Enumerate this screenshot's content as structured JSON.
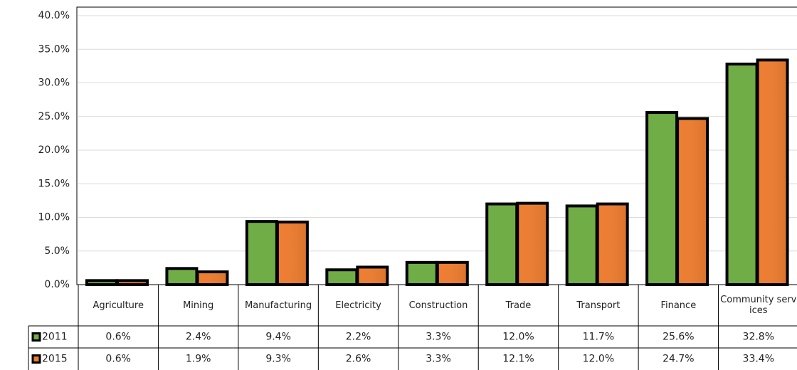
{
  "chart_data": {
    "type": "bar",
    "categories": [
      "Agriculture",
      "Mining",
      "Manufacturing",
      "Electricity",
      "Construction",
      "Trade",
      "Transport",
      "Finance",
      "Community services"
    ],
    "series": [
      {
        "name": "2011",
        "color": "#70ad47",
        "values": [
          0.6,
          2.4,
          9.4,
          2.2,
          3.3,
          12.0,
          11.7,
          25.6,
          32.8
        ],
        "value_labels": [
          "0.6%",
          "2.4%",
          "9.4%",
          "2.2%",
          "3.3%",
          "12.0%",
          "11.7%",
          "25.6%",
          "32.8%"
        ]
      },
      {
        "name": "2015",
        "color": "#ed7d31",
        "values": [
          0.6,
          1.9,
          9.3,
          2.6,
          3.3,
          12.1,
          12.0,
          24.7,
          33.4
        ],
        "value_labels": [
          "0.6%",
          "1.9%",
          "9.3%",
          "2.6%",
          "3.3%",
          "12.1%",
          "12.0%",
          "24.7%",
          "33.4%"
        ]
      }
    ],
    "ylim": [
      0,
      40
    ],
    "yticks": [
      {
        "value": 0,
        "label": "0.0%"
      },
      {
        "value": 5,
        "label": "5.0%"
      },
      {
        "value": 10,
        "label": "10.0%"
      },
      {
        "value": 15,
        "label": "15.0%"
      },
      {
        "value": 20,
        "label": "20.0%"
      },
      {
        "value": 25,
        "label": "25.0%"
      },
      {
        "value": 30,
        "label": "30.0%"
      },
      {
        "value": 35,
        "label": "35.0%"
      },
      {
        "value": 40,
        "label": "40.0%"
      }
    ],
    "grid": true
  }
}
